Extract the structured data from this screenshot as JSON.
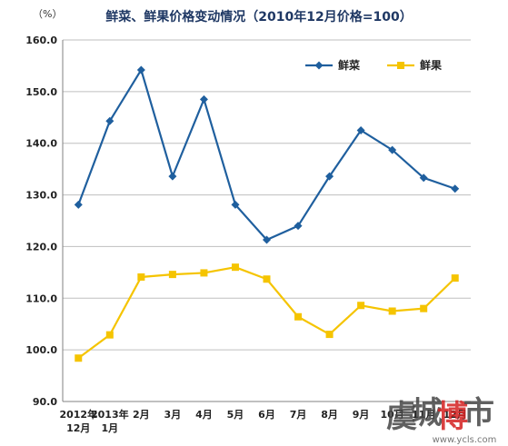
{
  "chart_data": {
    "type": "line",
    "title": "鲜菜、鲜果价格变动情况（2010年12月价格=100）",
    "unit": "（%）",
    "categories": [
      [
        "2012年",
        "12月"
      ],
      [
        "2013年",
        "1月"
      ],
      [
        "2月"
      ],
      [
        "3月"
      ],
      [
        "4月"
      ],
      [
        "5月"
      ],
      [
        "6月"
      ],
      [
        "7月"
      ],
      [
        "8月"
      ],
      [
        "9月"
      ],
      [
        "10月"
      ],
      [
        "11月"
      ],
      [
        "12月"
      ]
    ],
    "yticks": [
      "90.0",
      "100.0",
      "110.0",
      "120.0",
      "130.0",
      "140.0",
      "150.0",
      "160.0"
    ],
    "ylim": [
      90,
      160
    ],
    "grid": true,
    "legend": "top-right",
    "series": [
      {
        "name": "鲜菜",
        "color": "#1f5f9e",
        "marker": "diamond",
        "values": [
          128.1,
          144.3,
          154.2,
          133.6,
          148.5,
          128.1,
          121.3,
          124.0,
          133.6,
          142.5,
          138.7,
          133.3,
          131.2
        ]
      },
      {
        "name": "鲜果",
        "color": "#f5c400",
        "marker": "square",
        "values": [
          98.4,
          102.9,
          114.1,
          114.6,
          114.9,
          116.0,
          113.7,
          106.4,
          103.0,
          108.6,
          107.5,
          108.0,
          113.9
        ]
      }
    ]
  },
  "watermark": {
    "chars": [
      "虞",
      "城",
      "博",
      "市"
    ],
    "colors": [
      "#444444",
      "#444444",
      "#d42020",
      "#444444"
    ],
    "url": "www.ycls.com"
  }
}
